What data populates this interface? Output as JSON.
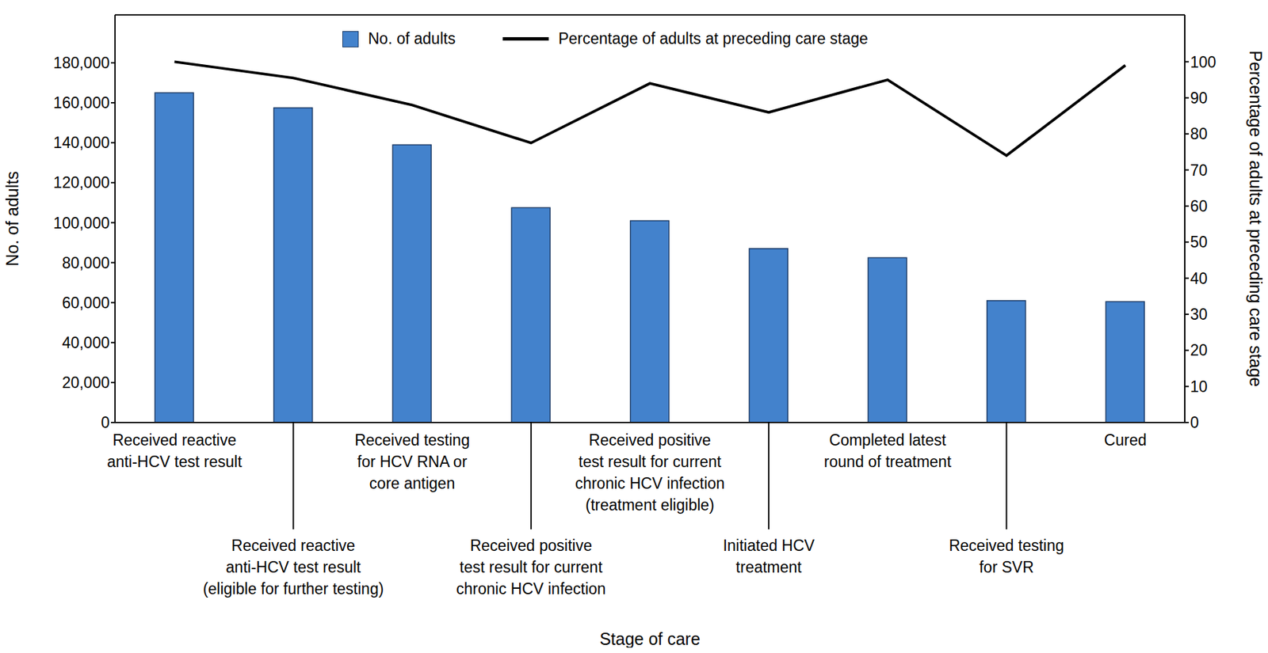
{
  "chart_data": {
    "type": "bar",
    "x_label": "Stage of care",
    "y_label": "No. of adults",
    "y2_label": "Percentage of adults at preceding care stage",
    "categories": [
      "Received reactive\nanti-HCV test result",
      "Received reactive\nanti-HCV test result\n(eligible for further testing)",
      "Received testing\nfor HCV RNA or\ncore antigen",
      "Received positive\ntest result for current\nchronic HCV infection",
      "Received positive\ntest result for current\nchronic HCV infection\n(treatment eligible)",
      "Initiated HCV\ntreatment",
      "Completed latest\nround of treatment",
      "Received testing\nfor SVR",
      "Cured"
    ],
    "series": [
      {
        "name": "No. of adults",
        "type": "bar",
        "color": "#4382cc",
        "values": [
          165000,
          157500,
          139000,
          107500,
          101000,
          87000,
          82500,
          61000,
          60500
        ]
      },
      {
        "name": "Percentage of adults at preceding care stage",
        "type": "line",
        "color": "#000000",
        "axis": "y2",
        "values": [
          100,
          95.5,
          88,
          77.5,
          94,
          86,
          95,
          74,
          99
        ]
      }
    ],
    "ylim": [
      0,
      204000
    ],
    "yticks": [
      0,
      {
        "value": 20000,
        "label": "20,000"
      },
      {
        "value": 40000,
        "label": "40,000"
      },
      {
        "value": 60000,
        "label": "60,000"
      },
      {
        "value": 80000,
        "label": "80,000"
      },
      {
        "value": 100000,
        "label": "100,000"
      },
      {
        "value": 120000,
        "label": "120,000"
      },
      {
        "value": 140000,
        "label": "140,000"
      },
      {
        "value": 160000,
        "label": "160,000"
      },
      {
        "value": 180000,
        "label": "180,000"
      }
    ],
    "y2lim": [
      0,
      113
    ],
    "y2ticks": [
      0,
      10,
      20,
      30,
      40,
      50,
      60,
      70,
      80,
      90,
      100
    ],
    "grid": false,
    "legend": "top"
  }
}
